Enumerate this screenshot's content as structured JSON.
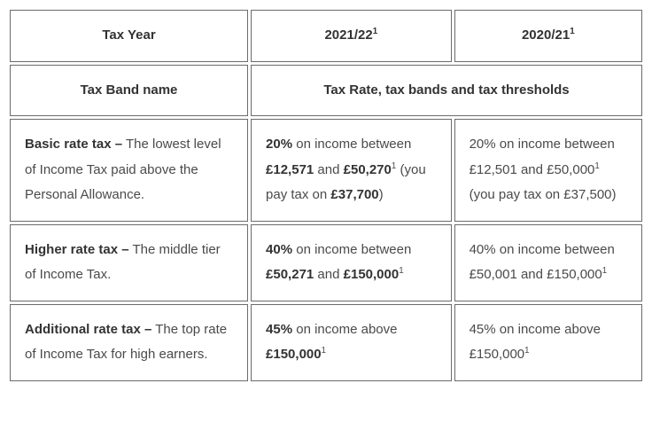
{
  "headers": {
    "col1": "Tax Year",
    "col2_pre": "2021/22",
    "col2_sup": "1",
    "col3_pre": "2020/21",
    "col3_sup": "1",
    "row2_col1": "Tax Band name",
    "row2_merged": "Tax Rate, tax bands and tax thresholds"
  },
  "rows": [
    {
      "name": "Basic rate tax –",
      "desc": " The lowest level of Income Tax paid above the Personal Allowance.",
      "y1": {
        "rate": "20%",
        "t1": " on income between ",
        "v1": "£12,571",
        "t2": " and ",
        "v2_pre": "£50,270",
        "v2_sup": "1",
        "t3": " (you pay tax on ",
        "v3": "£37,700",
        "t4": ")"
      },
      "y2": {
        "rate": "20%",
        "t1": " on income between £12,501 and £50,000",
        "sup": "1",
        "t2": " (you pay tax on £37,500)"
      }
    },
    {
      "name": "Higher rate tax –",
      "desc": " The middle tier of Income Tax.",
      "y1": {
        "rate": "40%",
        "t1": " on income between ",
        "v1": "£50,271",
        "t2": " and ",
        "v2_pre": "£150,000",
        "v2_sup": "1"
      },
      "y2": {
        "rate": "40%",
        "t1": " on income between £50,001 and £150,000",
        "sup": "1"
      }
    },
    {
      "name": "Additional rate tax –",
      "desc": " The top rate of Income Tax for high earners.",
      "y1": {
        "rate": "45%",
        "t1": " on income above ",
        "v2_pre": "£150,000",
        "v2_sup": "1"
      },
      "y2": {
        "rate": "45%",
        "t1": " on income above £150,000",
        "sup": "1"
      }
    }
  ],
  "colors": {
    "border": "#6b6b6b",
    "text": "#4a4a4a",
    "bold_text": "#333333",
    "background": "#ffffff"
  },
  "font": {
    "family": "Arial, sans-serif",
    "size_pt": 11,
    "line_height": 1.9
  }
}
